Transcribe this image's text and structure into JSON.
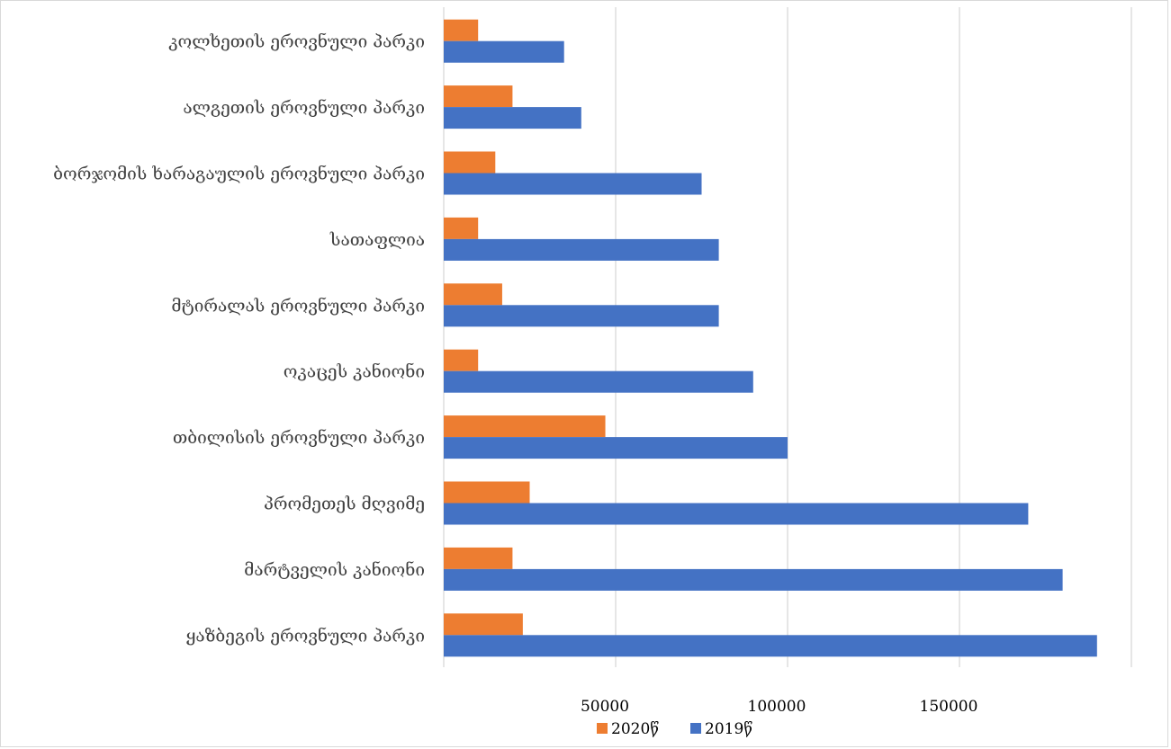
{
  "chart_data": {
    "type": "bar",
    "orientation": "horizontal",
    "categories": [
      "ყაზბეგის ეროვნული პარკი",
      "მარტველის კანიონი",
      "პრომეთეს მღვიმე",
      "თბილისის ეროვნული პარკი",
      "ოკაცეს კანიონი",
      "მტირალას ეროვნული პარკი",
      "სათაფლია",
      "ბორჯომის ხარაგაულის ეროვნული პარკი",
      "ალგეთის ეროვნული პარკი",
      "კოლხეთის ეროვნული პარკი"
    ],
    "series": [
      {
        "name": "2020წ",
        "color": "#ed7d31",
        "values": [
          23000,
          20000,
          25000,
          47000,
          10000,
          17000,
          10000,
          15000,
          20000,
          10000
        ]
      },
      {
        "name": "2019წ",
        "color": "#4472c4",
        "values": [
          190000,
          180000,
          170000,
          100000,
          90000,
          80000,
          80000,
          75000,
          40000,
          35000
        ]
      }
    ],
    "xlim": [
      0,
      200000
    ],
    "xticks": [
      50000,
      100000,
      150000
    ],
    "tick_labels": [
      "50000",
      "100000",
      "150000"
    ],
    "grid": true,
    "legend_position": "bottom",
    "title": "",
    "xlabel": "",
    "ylabel": ""
  }
}
